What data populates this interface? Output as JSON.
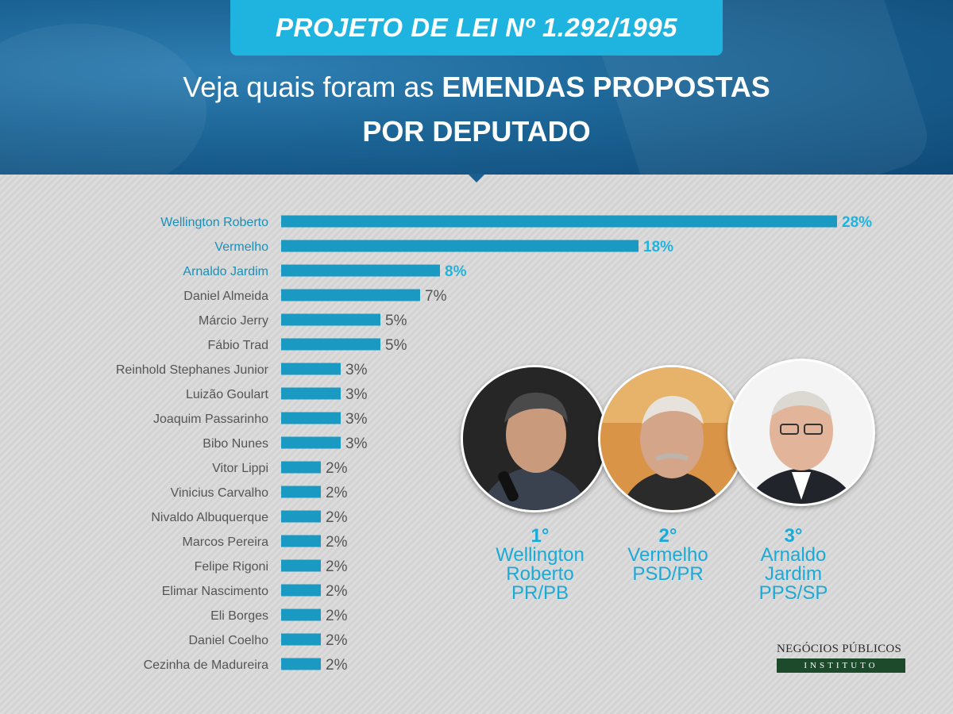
{
  "header": {
    "title": "PROJETO DE LEI Nº 1.292/1995",
    "subtitle_light": "Veja quais foram as ",
    "subtitle_bold": "EMENDAS PROPOSTAS",
    "subtitle_line2": "POR DEPUTADO"
  },
  "colors": {
    "accent": "#1fb3e0",
    "bar": "#1a9ac2",
    "header_bg": "#1c6596",
    "label_gray": "#555555"
  },
  "chart_data": {
    "type": "bar",
    "orientation": "horizontal",
    "categories": [
      "Wellington Roberto",
      "Vermelho",
      "Arnaldo Jardim",
      "Daniel Almeida",
      "Márcio Jerry",
      "Fábio Trad",
      "Reinhold Stephanes Junior",
      "Luizão Goulart",
      "Joaquim Passarinho",
      "Bibo Nunes",
      "Vitor Lippi",
      "Vinicius Carvalho",
      "Nivaldo Albuquerque",
      "Marcos Pereira",
      "Felipe Rigoni",
      "Elimar Nascimento",
      "Eli Borges",
      "Daniel Coelho",
      "Cezinha de Madureira"
    ],
    "values": [
      28,
      18,
      8,
      7,
      5,
      5,
      3,
      3,
      3,
      3,
      2,
      2,
      2,
      2,
      2,
      2,
      2,
      2,
      2
    ],
    "value_labels": [
      "28%",
      "18%",
      "8%",
      "7%",
      "5%",
      "5%",
      "3%",
      "3%",
      "3%",
      "3%",
      "2%",
      "2%",
      "2%",
      "2%",
      "2%",
      "2%",
      "2%",
      "2%",
      "2%"
    ],
    "highlighted": [
      true,
      true,
      true,
      false,
      false,
      false,
      false,
      false,
      false,
      false,
      false,
      false,
      false,
      false,
      false,
      false,
      false,
      false,
      false
    ],
    "unit": "%",
    "xlim": [
      0,
      28
    ]
  },
  "podium": [
    {
      "rank": "1°",
      "lines": [
        "Wellington",
        "Roberto",
        "PR/PB"
      ]
    },
    {
      "rank": "2°",
      "lines": [
        "Vermelho",
        "PSD/PR"
      ]
    },
    {
      "rank": "3°",
      "lines": [
        "Arnaldo",
        "Jardim",
        "PPS/SP"
      ]
    }
  ],
  "logo": {
    "top": "NEGÓCIOS PÚBLICOS",
    "bottom": "INSTITUTO"
  }
}
